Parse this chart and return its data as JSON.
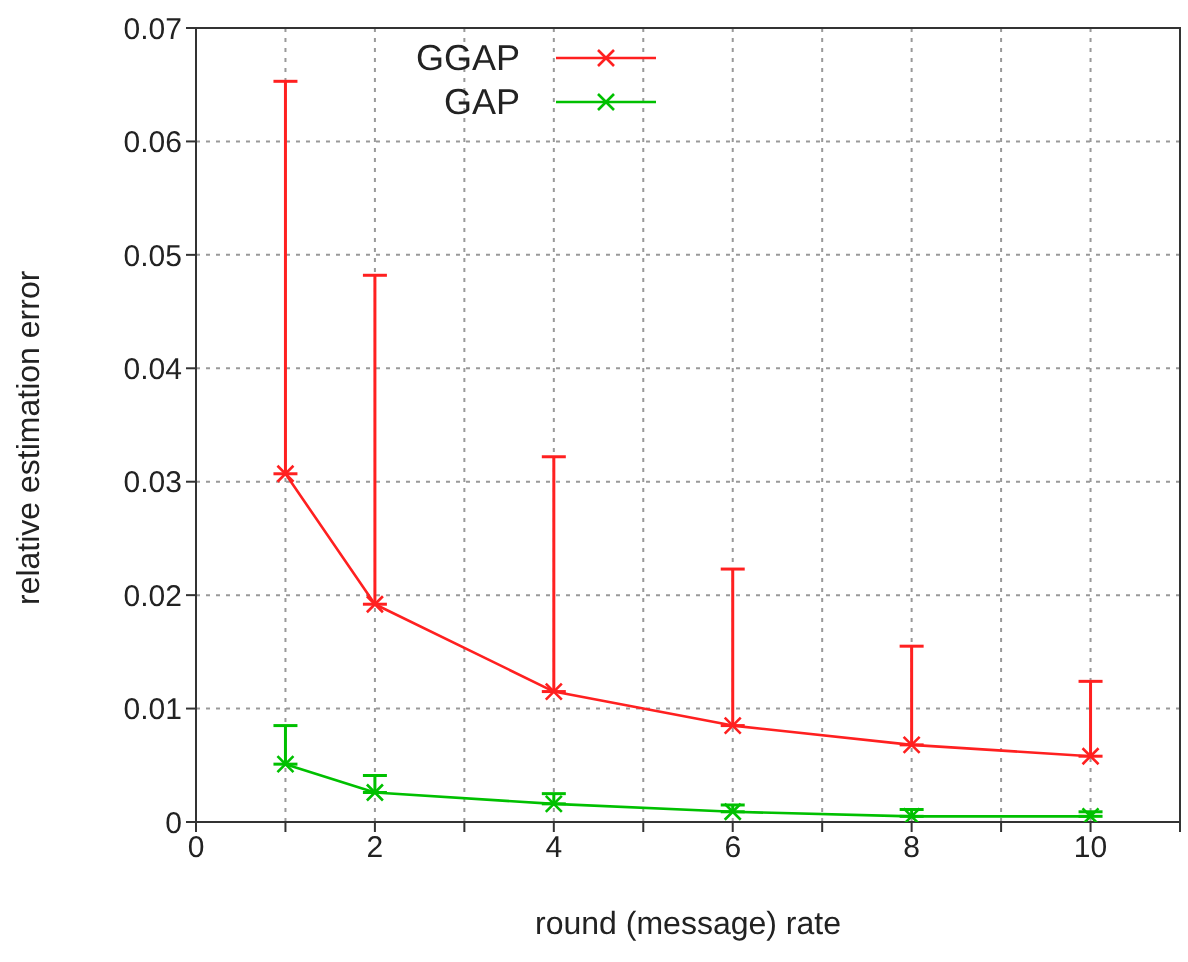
{
  "chart_data": {
    "type": "line",
    "xlabel": "round (message) rate",
    "ylabel": "relative estimation error",
    "x": [
      1,
      2,
      4,
      6,
      8,
      10
    ],
    "series": [
      {
        "name": "GGAP",
        "color": "#ff2020",
        "values": [
          0.0307,
          0.0192,
          0.0115,
          0.0085,
          0.0068,
          0.0058
        ],
        "errors": [
          [
            0.0307,
            0.0653
          ],
          [
            0.0192,
            0.0482
          ],
          [
            0.0115,
            0.0322
          ],
          [
            0.0085,
            0.0223
          ],
          [
            0.0068,
            0.0155
          ],
          [
            0.0058,
            0.0124
          ]
        ]
      },
      {
        "name": "GAP",
        "color": "#00c000",
        "values": [
          0.0051,
          0.0026,
          0.0016,
          0.0009,
          0.0005,
          0.0005
        ],
        "errors": [
          [
            0.0051,
            0.0085
          ],
          [
            0.0026,
            0.0041
          ],
          [
            0.0016,
            0.0025
          ],
          [
            0.0009,
            0.0015
          ],
          [
            0.0005,
            0.0011
          ],
          [
            0.0005,
            0.0009
          ]
        ]
      }
    ],
    "xlim": [
      0,
      11
    ],
    "xticks": [
      0,
      {
        "value": 1,
        "label": null
      },
      2,
      {
        "value": 3,
        "label": null
      },
      4,
      {
        "value": 5,
        "label": null
      },
      6,
      {
        "value": 7,
        "label": null
      },
      8,
      {
        "value": 9,
        "label": null
      },
      10,
      {
        "value": 11,
        "label": null
      }
    ],
    "ylim": [
      0,
      0.07
    ],
    "yticks": [
      0,
      0.01,
      0.02,
      0.03,
      0.04,
      0.05,
      0.06,
      0.07
    ],
    "grid": true,
    "legend": "top",
    "marker": "cross",
    "line_style": "solid"
  }
}
